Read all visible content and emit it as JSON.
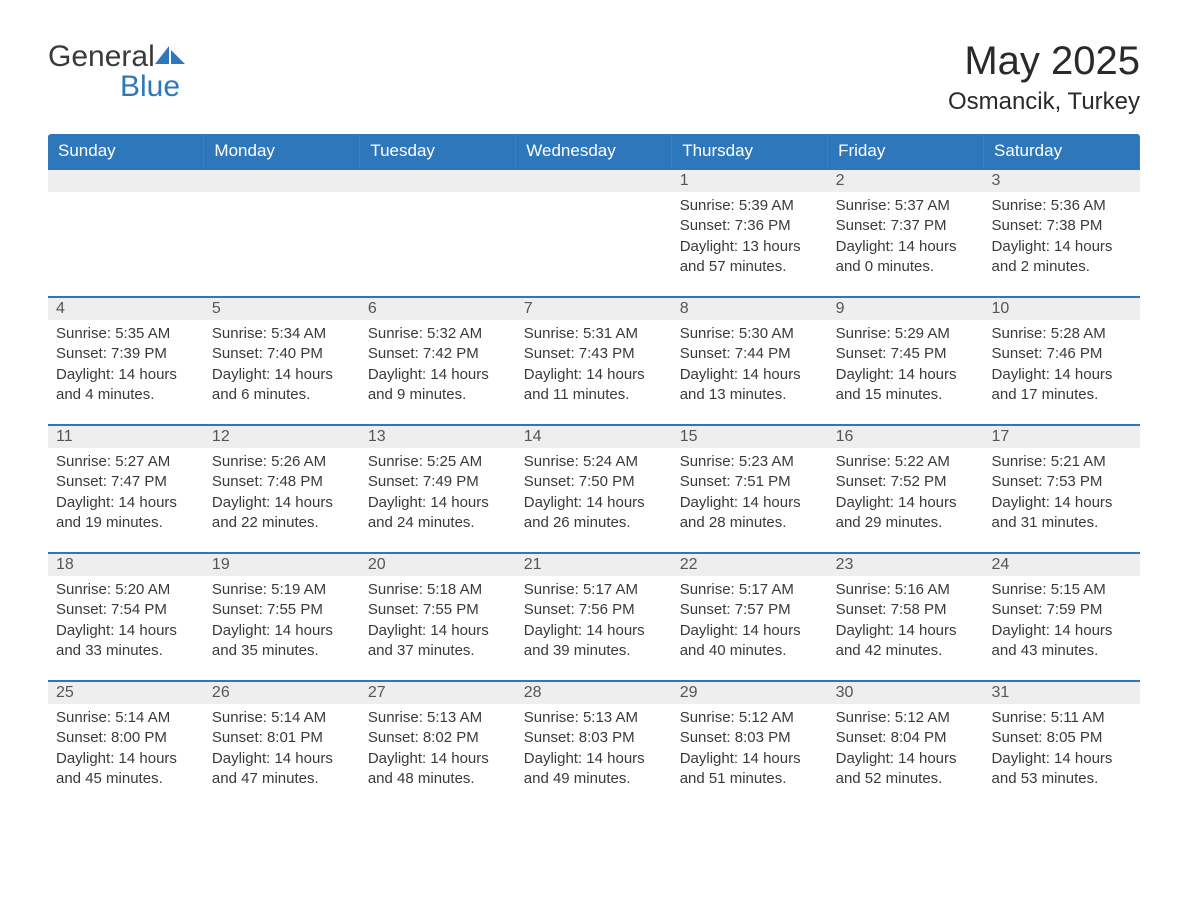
{
  "logo": {
    "word1": "General",
    "word2": "Blue"
  },
  "title": {
    "month": "May 2025",
    "location": "Osmancik, Turkey"
  },
  "weekday_headers": [
    "Sunday",
    "Monday",
    "Tuesday",
    "Wednesday",
    "Thursday",
    "Friday",
    "Saturday"
  ],
  "colors": {
    "header_bg": "#2f77bb",
    "header_text": "#ffffff",
    "daynum_bg": "#eeeeee",
    "daynum_border": "#2f77bb",
    "body_text": "#3a3a3a"
  },
  "weeks": [
    [
      null,
      null,
      null,
      null,
      {
        "n": "1",
        "sr": "5:39 AM",
        "ss": "7:36 PM",
        "d": "13 hours and 57 minutes."
      },
      {
        "n": "2",
        "sr": "5:37 AM",
        "ss": "7:37 PM",
        "d": "14 hours and 0 minutes."
      },
      {
        "n": "3",
        "sr": "5:36 AM",
        "ss": "7:38 PM",
        "d": "14 hours and 2 minutes."
      }
    ],
    [
      {
        "n": "4",
        "sr": "5:35 AM",
        "ss": "7:39 PM",
        "d": "14 hours and 4 minutes."
      },
      {
        "n": "5",
        "sr": "5:34 AM",
        "ss": "7:40 PM",
        "d": "14 hours and 6 minutes."
      },
      {
        "n": "6",
        "sr": "5:32 AM",
        "ss": "7:42 PM",
        "d": "14 hours and 9 minutes."
      },
      {
        "n": "7",
        "sr": "5:31 AM",
        "ss": "7:43 PM",
        "d": "14 hours and 11 minutes."
      },
      {
        "n": "8",
        "sr": "5:30 AM",
        "ss": "7:44 PM",
        "d": "14 hours and 13 minutes."
      },
      {
        "n": "9",
        "sr": "5:29 AM",
        "ss": "7:45 PM",
        "d": "14 hours and 15 minutes."
      },
      {
        "n": "10",
        "sr": "5:28 AM",
        "ss": "7:46 PM",
        "d": "14 hours and 17 minutes."
      }
    ],
    [
      {
        "n": "11",
        "sr": "5:27 AM",
        "ss": "7:47 PM",
        "d": "14 hours and 19 minutes."
      },
      {
        "n": "12",
        "sr": "5:26 AM",
        "ss": "7:48 PM",
        "d": "14 hours and 22 minutes."
      },
      {
        "n": "13",
        "sr": "5:25 AM",
        "ss": "7:49 PM",
        "d": "14 hours and 24 minutes."
      },
      {
        "n": "14",
        "sr": "5:24 AM",
        "ss": "7:50 PM",
        "d": "14 hours and 26 minutes."
      },
      {
        "n": "15",
        "sr": "5:23 AM",
        "ss": "7:51 PM",
        "d": "14 hours and 28 minutes."
      },
      {
        "n": "16",
        "sr": "5:22 AM",
        "ss": "7:52 PM",
        "d": "14 hours and 29 minutes."
      },
      {
        "n": "17",
        "sr": "5:21 AM",
        "ss": "7:53 PM",
        "d": "14 hours and 31 minutes."
      }
    ],
    [
      {
        "n": "18",
        "sr": "5:20 AM",
        "ss": "7:54 PM",
        "d": "14 hours and 33 minutes."
      },
      {
        "n": "19",
        "sr": "5:19 AM",
        "ss": "7:55 PM",
        "d": "14 hours and 35 minutes."
      },
      {
        "n": "20",
        "sr": "5:18 AM",
        "ss": "7:55 PM",
        "d": "14 hours and 37 minutes."
      },
      {
        "n": "21",
        "sr": "5:17 AM",
        "ss": "7:56 PM",
        "d": "14 hours and 39 minutes."
      },
      {
        "n": "22",
        "sr": "5:17 AM",
        "ss": "7:57 PM",
        "d": "14 hours and 40 minutes."
      },
      {
        "n": "23",
        "sr": "5:16 AM",
        "ss": "7:58 PM",
        "d": "14 hours and 42 minutes."
      },
      {
        "n": "24",
        "sr": "5:15 AM",
        "ss": "7:59 PM",
        "d": "14 hours and 43 minutes."
      }
    ],
    [
      {
        "n": "25",
        "sr": "5:14 AM",
        "ss": "8:00 PM",
        "d": "14 hours and 45 minutes."
      },
      {
        "n": "26",
        "sr": "5:14 AM",
        "ss": "8:01 PM",
        "d": "14 hours and 47 minutes."
      },
      {
        "n": "27",
        "sr": "5:13 AM",
        "ss": "8:02 PM",
        "d": "14 hours and 48 minutes."
      },
      {
        "n": "28",
        "sr": "5:13 AM",
        "ss": "8:03 PM",
        "d": "14 hours and 49 minutes."
      },
      {
        "n": "29",
        "sr": "5:12 AM",
        "ss": "8:03 PM",
        "d": "14 hours and 51 minutes."
      },
      {
        "n": "30",
        "sr": "5:12 AM",
        "ss": "8:04 PM",
        "d": "14 hours and 52 minutes."
      },
      {
        "n": "31",
        "sr": "5:11 AM",
        "ss": "8:05 PM",
        "d": "14 hours and 53 minutes."
      }
    ]
  ],
  "labels": {
    "sunrise": "Sunrise: ",
    "sunset": "Sunset: ",
    "daylight": "Daylight: "
  }
}
